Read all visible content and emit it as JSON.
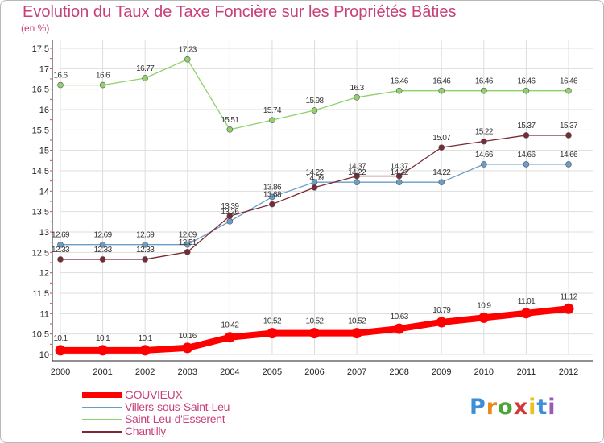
{
  "title": "Evolution du Taux de Taxe Foncière sur les Propriétés Bâties",
  "subtitle": "(en %)",
  "logo": {
    "letters": [
      "P",
      "r",
      "o",
      "x",
      "i",
      "t",
      "i"
    ],
    "colors": [
      "#3c8ed6",
      "#e98b1c",
      "#4aa63a",
      "#d23a3a",
      "#e9c21c",
      "#3c8ed6",
      "#9b59b6"
    ]
  },
  "chart_data": {
    "type": "line",
    "title": "Evolution du Taux de Taxe Foncière sur les Propriétés Bâties",
    "ylabel": "(en %)",
    "xlabel": "",
    "x": [
      "2000",
      "2001",
      "2002",
      "2003",
      "2004",
      "2005",
      "2006",
      "2007",
      "2008",
      "2009",
      "2010",
      "2011",
      "2012"
    ],
    "ylim": [
      10,
      17.5
    ],
    "yticks": [
      "10",
      "10.5",
      "11",
      "11.5",
      "12",
      "12.5",
      "13",
      "13.5",
      "14",
      "14.5",
      "15",
      "15.5",
      "16",
      "16.5",
      "17",
      "17.5"
    ],
    "grid": true,
    "legend_position": "bottom-left",
    "series": [
      {
        "name": "GOUVIEUX",
        "color": "#ff0000",
        "thick": true,
        "values": [
          10.1,
          10.1,
          10.1,
          10.16,
          10.42,
          10.52,
          10.52,
          10.52,
          10.63,
          10.79,
          10.9,
          11.01,
          11.12
        ],
        "labels": [
          "10.1",
          "10.1",
          "10.1",
          "10.16",
          "10.42",
          "10.52",
          "10.52",
          "10.52",
          "10.63",
          "10.79",
          "10.9",
          "11.01",
          "11.12"
        ]
      },
      {
        "name": "Villers-sous-Saint-Leu",
        "color": "#6a9ec8",
        "thick": false,
        "values": [
          12.69,
          12.69,
          12.69,
          12.69,
          13.26,
          13.86,
          14.22,
          14.22,
          14.22,
          14.22,
          14.66,
          14.66,
          14.66
        ],
        "labels": [
          "12.69",
          "12.69",
          "12.69",
          "12.69",
          "13.26",
          "13.86",
          "14.22",
          "14.22",
          "14.22",
          "14.22",
          "14.66",
          "14.66",
          "14.66"
        ]
      },
      {
        "name": "Saint-Leu-d'Esserent",
        "color": "#8fd16a",
        "thick": false,
        "values": [
          16.6,
          16.6,
          16.77,
          17.23,
          15.51,
          15.74,
          15.98,
          16.3,
          16.46,
          16.46,
          16.46,
          16.46,
          16.46
        ],
        "labels": [
          "16.6",
          "16.6",
          "16.77",
          "17.23",
          "15.51",
          "15.74",
          "15.98",
          "16.3",
          "16.46",
          "16.46",
          "16.46",
          "16.46",
          "16.46"
        ]
      },
      {
        "name": "Chantilly",
        "color": "#7a2a34",
        "thick": false,
        "values": [
          12.33,
          12.33,
          12.33,
          12.51,
          13.39,
          13.68,
          14.09,
          14.37,
          14.37,
          15.07,
          15.22,
          15.37,
          15.37
        ],
        "labels": [
          "12.33",
          "12.33",
          "12.33",
          "12.51",
          "13.39",
          "13.68",
          "14.09",
          "14.37",
          "14.37",
          "15.07",
          "15.22",
          "15.37",
          "15.37"
        ]
      }
    ]
  }
}
